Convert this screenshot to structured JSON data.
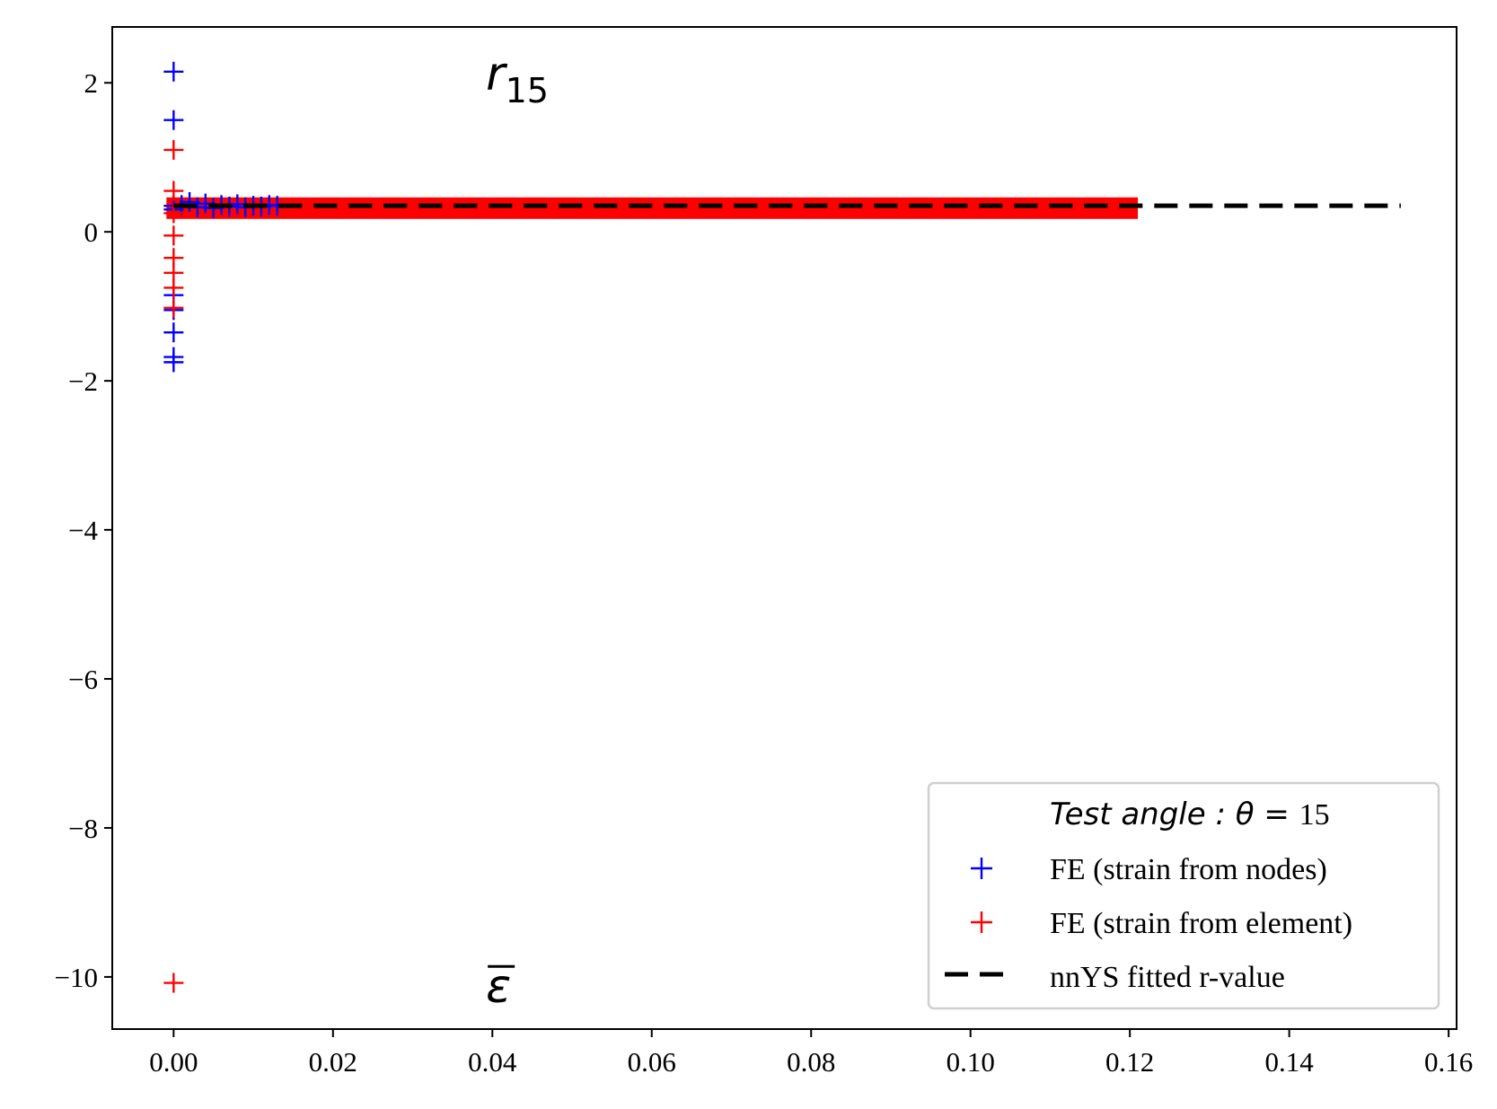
{
  "chart_data": {
    "type": "scatter",
    "title": "",
    "xlabel": "",
    "ylabel": "",
    "xlim": [
      -0.0077,
      0.161
    ],
    "ylim": [
      -10.7,
      2.75
    ],
    "x_ticks": [
      0.0,
      0.02,
      0.04,
      0.06,
      0.08,
      0.1,
      0.12,
      0.14,
      0.16
    ],
    "x_tick_labels": [
      "0.00",
      "0.02",
      "0.04",
      "0.06",
      "0.08",
      "0.10",
      "0.12",
      "0.14",
      "0.16"
    ],
    "y_ticks": [
      2,
      0,
      -2,
      -4,
      -6,
      -8,
      -10
    ],
    "y_tick_labels": [
      "2",
      "0",
      "−2",
      "−4",
      "−6",
      "−8",
      "−10"
    ],
    "grid": false,
    "legend_position": "bottom-right",
    "legend_title": {
      "italic": "Test  angle : θ = ",
      "value": "15"
    },
    "annotations": [
      {
        "name": "r-label",
        "main": "r",
        "sub": "15",
        "x": 0.0392,
        "y": 2.1
      },
      {
        "name": "epsilon-label",
        "main": "ε",
        "overline": true,
        "x": 0.0392,
        "y": -10.1
      }
    ],
    "series": [
      {
        "name": "FE (strain from nodes)",
        "marker": "+",
        "color": "#0000ff",
        "points": [
          [
            0,
            2.15
          ],
          [
            0,
            1.5
          ],
          [
            0,
            0.35
          ],
          [
            0,
            0.3
          ],
          [
            0,
            -0.85
          ],
          [
            0,
            -1.05
          ],
          [
            0,
            -1.35
          ],
          [
            0,
            -1.68
          ],
          [
            0,
            -1.75
          ],
          [
            0.001,
            0.36
          ],
          [
            0.002,
            0.4
          ],
          [
            0.003,
            0.33
          ],
          [
            0.004,
            0.38
          ],
          [
            0.005,
            0.32
          ],
          [
            0.006,
            0.36
          ],
          [
            0.007,
            0.34
          ],
          [
            0.008,
            0.37
          ],
          [
            0.009,
            0.33
          ],
          [
            0.01,
            0.35
          ],
          [
            0.011,
            0.34
          ],
          [
            0.012,
            0.36
          ],
          [
            0.013,
            0.35
          ]
        ]
      },
      {
        "name": "FE (strain from element)",
        "marker": "+",
        "color": "#ff0000",
        "points": [
          [
            0,
            1.1
          ],
          [
            0,
            0.55
          ],
          [
            0,
            0.25
          ],
          [
            0,
            -0.05
          ],
          [
            0,
            -0.35
          ],
          [
            0,
            -0.55
          ],
          [
            0,
            -0.75
          ],
          [
            0,
            -1.02
          ],
          [
            0,
            -10.08
          ]
        ],
        "band": {
          "x_start": 0.0,
          "x_end": 0.121,
          "y": 0.33
        }
      },
      {
        "name": "nnYS fitted r-value",
        "style": "dashed",
        "color": "#000000",
        "x": [
          0.0,
          0.154
        ],
        "y": [
          0.35,
          0.35
        ]
      }
    ]
  }
}
